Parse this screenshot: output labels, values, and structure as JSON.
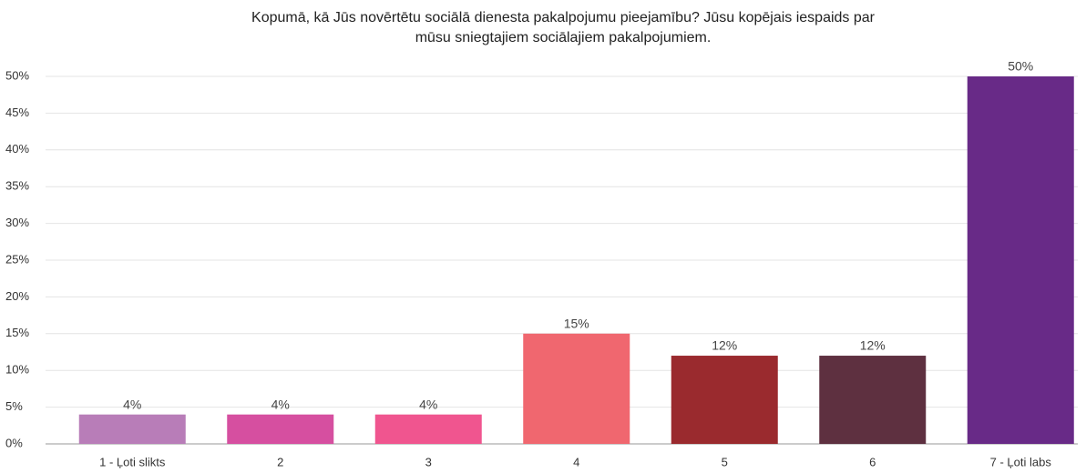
{
  "chart_data": {
    "type": "bar",
    "title": [
      "Kopumā, kā Jūs novērtētu sociālā dienesta pakalpojumu pieejamību? Jūsu kopējais iespaids par",
      "mūsu sniegtajiem sociālajiem pakalpojumiem."
    ],
    "categories": [
      "1 - Ļoti slikts",
      "2",
      "3",
      "4",
      "5",
      "6",
      "7 - Ļoti labs"
    ],
    "values": [
      4,
      4,
      4,
      15,
      12,
      12,
      50
    ],
    "value_labels": [
      "4%",
      "4%",
      "4%",
      "15%",
      "12%",
      "12%",
      "50%"
    ],
    "colors": [
      "#b87db8",
      "#d64fa0",
      "#f0558f",
      "#f0676f",
      "#9a2a2e",
      "#5e3040",
      "#682a87"
    ],
    "ylim": [
      0,
      50
    ],
    "yticks": [
      {
        "value": 0,
        "label": "0%"
      },
      {
        "value": 5,
        "label": "5%"
      },
      {
        "value": 10,
        "label": "10%"
      },
      {
        "value": 15,
        "label": "15%"
      },
      {
        "value": 20,
        "label": "20%"
      },
      {
        "value": 25,
        "label": "25%"
      },
      {
        "value": 30,
        "label": "30%"
      },
      {
        "value": 35,
        "label": "35%"
      },
      {
        "value": 40,
        "label": "40%"
      },
      {
        "value": 45,
        "label": "45%"
      },
      {
        "value": 50,
        "label": "50%"
      }
    ],
    "grid": true
  }
}
